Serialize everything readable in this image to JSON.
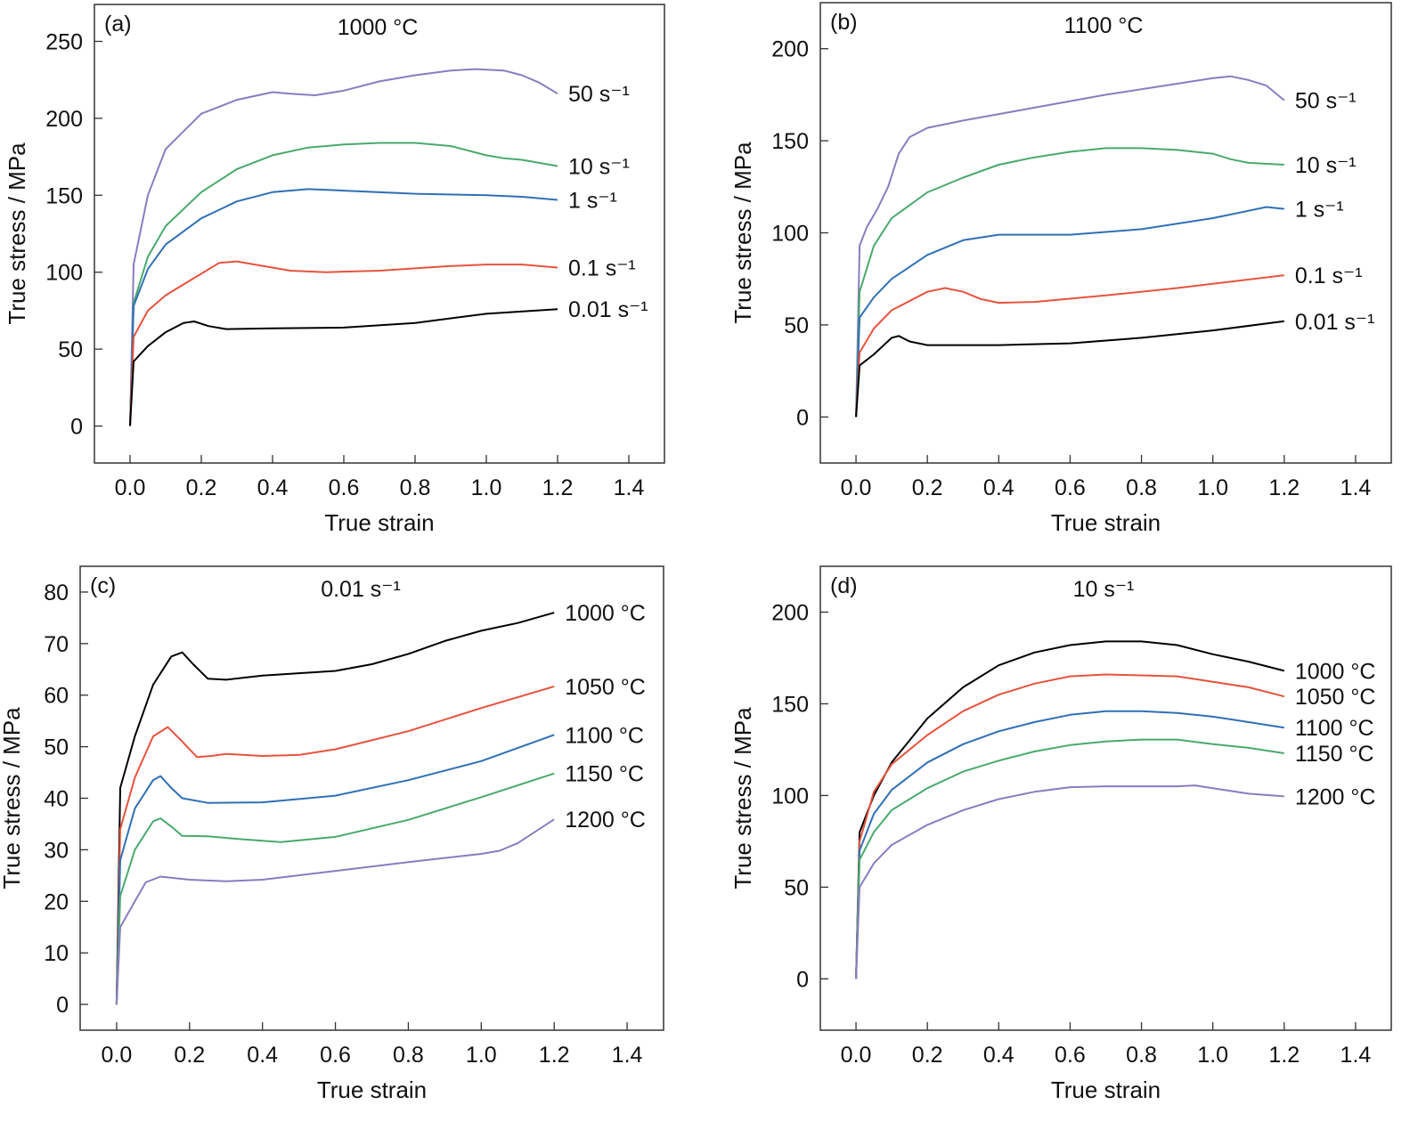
{
  "chart_data": [
    {
      "type": "line",
      "panel_label": "(a)",
      "title": "1000 °C",
      "xlabel": "True strain",
      "ylabel": "True stress / MPa",
      "xlim": [
        -0.1,
        1.5
      ],
      "ylim": [
        -24,
        274
      ],
      "xticks": [
        0.0,
        0.2,
        0.4,
        0.6,
        0.8,
        1.0,
        1.2,
        1.4
      ],
      "xtick_labels": [
        "0.0",
        "0.2",
        "0.4",
        "0.6",
        "0.8",
        "1.0",
        "1.2",
        "1.4"
      ],
      "yticks": [
        0,
        50,
        100,
        150,
        200,
        250
      ],
      "ytick_labels": [
        "0",
        "50",
        "100",
        "150",
        "200",
        "250"
      ],
      "grid": false,
      "series": [
        {
          "name": "50 s⁻¹",
          "color": "#8a7cc0",
          "x": [
            0,
            0.01,
            0.05,
            0.1,
            0.2,
            0.3,
            0.4,
            0.45,
            0.52,
            0.6,
            0.7,
            0.8,
            0.9,
            0.97,
            1.05,
            1.1,
            1.15,
            1.2
          ],
          "y": [
            0,
            105,
            150,
            180,
            203,
            212,
            217,
            216,
            215,
            218,
            224,
            228,
            231,
            232,
            231,
            228,
            223,
            216
          ]
        },
        {
          "name": "10 s⁻¹",
          "color": "#4aa96c",
          "x": [
            0,
            0.01,
            0.05,
            0.1,
            0.2,
            0.3,
            0.4,
            0.5,
            0.6,
            0.7,
            0.8,
            0.9,
            1.0,
            1.05,
            1.1,
            1.2
          ],
          "y": [
            0,
            80,
            110,
            130,
            152,
            167,
            176,
            181,
            183,
            184,
            184,
            182,
            176,
            174,
            173,
            169
          ]
        },
        {
          "name": "1 s⁻¹",
          "color": "#2f6fb5",
          "x": [
            0,
            0.01,
            0.05,
            0.1,
            0.2,
            0.3,
            0.4,
            0.5,
            0.6,
            0.8,
            1.0,
            1.1,
            1.2
          ],
          "y": [
            0,
            78,
            102,
            118,
            135,
            146,
            152,
            154,
            153,
            151,
            150,
            149,
            147
          ]
        },
        {
          "name": "0.1 s⁻¹",
          "color": "#e5533d",
          "x": [
            0,
            0.01,
            0.05,
            0.1,
            0.2,
            0.25,
            0.3,
            0.35,
            0.45,
            0.55,
            0.7,
            0.9,
            1.0,
            1.1,
            1.2
          ],
          "y": [
            0,
            58,
            75,
            85,
            99,
            106,
            107,
            105,
            101,
            100,
            101,
            104,
            105,
            105,
            103
          ]
        },
        {
          "name": "0.01 s⁻¹",
          "color": "#000000",
          "x": [
            0,
            0.01,
            0.05,
            0.1,
            0.15,
            0.18,
            0.22,
            0.27,
            0.4,
            0.6,
            0.8,
            1.0,
            1.2
          ],
          "y": [
            0,
            42,
            52,
            61,
            67,
            68,
            65,
            63,
            63.5,
            64,
            67,
            73,
            76
          ]
        }
      ]
    },
    {
      "type": "line",
      "panel_label": "(b)",
      "title": "1100 °C",
      "xlabel": "True strain",
      "ylabel": "True stress / MPa",
      "xlim": [
        -0.1,
        1.5
      ],
      "ylim": [
        -25,
        225
      ],
      "xticks": [
        0.0,
        0.2,
        0.4,
        0.6,
        0.8,
        1.0,
        1.2,
        1.4
      ],
      "xtick_labels": [
        "0.0",
        "0.2",
        "0.4",
        "0.6",
        "0.8",
        "1.0",
        "1.2",
        "1.4"
      ],
      "yticks": [
        0,
        50,
        100,
        150,
        200
      ],
      "ytick_labels": [
        "0",
        "50",
        "100",
        "150",
        "200"
      ],
      "grid": false,
      "series": [
        {
          "name": "50 s⁻¹",
          "color": "#8a7cc0",
          "x": [
            0,
            0.01,
            0.03,
            0.06,
            0.09,
            0.12,
            0.15,
            0.2,
            0.3,
            0.5,
            0.7,
            0.9,
            1.0,
            1.05,
            1.1,
            1.15,
            1.2
          ],
          "y": [
            0,
            93,
            103,
            113,
            125,
            143,
            152,
            157,
            161,
            168,
            175,
            181,
            184,
            185,
            183,
            180,
            172
          ]
        },
        {
          "name": "10 s⁻¹",
          "color": "#4aa96c",
          "x": [
            0,
            0.01,
            0.05,
            0.1,
            0.2,
            0.3,
            0.4,
            0.5,
            0.6,
            0.7,
            0.8,
            0.9,
            1.0,
            1.05,
            1.1,
            1.2
          ],
          "y": [
            0,
            68,
            93,
            108,
            122,
            130,
            137,
            141,
            144,
            146,
            146,
            145,
            143,
            140,
            138,
            137
          ]
        },
        {
          "name": "1 s⁻¹",
          "color": "#2f6fb5",
          "x": [
            0,
            0.01,
            0.05,
            0.1,
            0.2,
            0.3,
            0.4,
            0.6,
            0.8,
            1.0,
            1.1,
            1.15,
            1.2
          ],
          "y": [
            0,
            54,
            65,
            75,
            88,
            96,
            99,
            99,
            102,
            108,
            112,
            114,
            113
          ]
        },
        {
          "name": "0.1 s⁻¹",
          "color": "#e5533d",
          "x": [
            0,
            0.01,
            0.05,
            0.1,
            0.2,
            0.25,
            0.3,
            0.35,
            0.4,
            0.5,
            0.7,
            0.9,
            1.2
          ],
          "y": [
            0,
            35,
            48,
            58,
            68,
            70,
            68,
            64,
            62,
            62.5,
            66,
            70,
            77
          ]
        },
        {
          "name": "0.01 s⁻¹",
          "color": "#000000",
          "x": [
            0,
            0.01,
            0.05,
            0.1,
            0.12,
            0.15,
            0.2,
            0.4,
            0.6,
            0.8,
            1.0,
            1.2
          ],
          "y": [
            0,
            28,
            34,
            43,
            44,
            41,
            39,
            39,
            40,
            43,
            47,
            52
          ]
        }
      ]
    },
    {
      "type": "line",
      "panel_label": "(c)",
      "title": "0.01 s⁻¹",
      "xlabel": "True strain",
      "ylabel": "True stress / MPa",
      "xlim": [
        -0.1,
        1.5
      ],
      "ylim": [
        -5,
        85
      ],
      "xticks": [
        0.0,
        0.2,
        0.4,
        0.6,
        0.8,
        1.0,
        1.2,
        1.4
      ],
      "xtick_labels": [
        "0.0",
        "0.2",
        "0.4",
        "0.6",
        "0.8",
        "1.0",
        "1.2",
        "1.4"
      ],
      "yticks": [
        0,
        10,
        20,
        30,
        40,
        50,
        60,
        70,
        80
      ],
      "ytick_labels": [
        "0",
        "10",
        "20",
        "30",
        "40",
        "50",
        "60",
        "70",
        "80"
      ],
      "grid": false,
      "series": [
        {
          "name": "1000 °C",
          "color": "#000000",
          "x": [
            0,
            0.01,
            0.05,
            0.1,
            0.15,
            0.18,
            0.21,
            0.25,
            0.3,
            0.4,
            0.6,
            0.7,
            0.8,
            0.9,
            1.0,
            1.1,
            1.2
          ],
          "y": [
            0,
            42,
            52,
            62,
            67.5,
            68.3,
            66,
            63.2,
            63,
            63.8,
            64.7,
            66,
            68,
            70.5,
            72.5,
            74,
            76
          ]
        },
        {
          "name": "1050 °C",
          "color": "#e5533d",
          "x": [
            0,
            0.01,
            0.05,
            0.1,
            0.14,
            0.18,
            0.22,
            0.26,
            0.3,
            0.4,
            0.5,
            0.6,
            0.8,
            1.0,
            1.2
          ],
          "y": [
            0,
            34,
            44,
            52,
            53.8,
            51,
            48,
            48.2,
            48.6,
            48.2,
            48.4,
            49.5,
            53,
            57.5,
            61.7
          ]
        },
        {
          "name": "1100 °C",
          "color": "#2f6fb5",
          "x": [
            0,
            0.01,
            0.05,
            0.1,
            0.12,
            0.15,
            0.18,
            0.25,
            0.4,
            0.6,
            0.8,
            1.0,
            1.2
          ],
          "y": [
            0,
            28,
            38,
            43.5,
            44.3,
            42,
            40,
            39.1,
            39.2,
            40.5,
            43.5,
            47.2,
            52.3
          ]
        },
        {
          "name": "1150 °C",
          "color": "#4aa96c",
          "x": [
            0,
            0.01,
            0.05,
            0.1,
            0.12,
            0.15,
            0.18,
            0.25,
            0.35,
            0.45,
            0.6,
            0.8,
            1.0,
            1.2
          ],
          "y": [
            0,
            21,
            30,
            35.5,
            36.1,
            34.5,
            32.7,
            32.6,
            32,
            31.5,
            32.5,
            35.8,
            40.2,
            44.8
          ]
        },
        {
          "name": "1200 °C",
          "color": "#8a7cc0",
          "x": [
            0,
            0.01,
            0.05,
            0.08,
            0.12,
            0.2,
            0.3,
            0.4,
            0.6,
            0.8,
            1.0,
            1.05,
            1.1,
            1.2
          ],
          "y": [
            0,
            15,
            20,
            23.7,
            24.8,
            24.2,
            23.9,
            24.2,
            25.9,
            27.6,
            29.2,
            29.8,
            31.3,
            35.9
          ]
        }
      ]
    },
    {
      "type": "line",
      "panel_label": "(d)",
      "title": "10 s⁻¹",
      "xlabel": "True strain",
      "ylabel": "True stress / MPa",
      "xlim": [
        -0.1,
        1.5
      ],
      "ylim": [
        -28,
        225
      ],
      "xticks": [
        0.0,
        0.2,
        0.4,
        0.6,
        0.8,
        1.0,
        1.2,
        1.4
      ],
      "xtick_labels": [
        "0.0",
        "0.2",
        "0.4",
        "0.6",
        "0.8",
        "1.0",
        "1.2",
        "1.4"
      ],
      "yticks": [
        0,
        50,
        100,
        150,
        200
      ],
      "ytick_labels": [
        "0",
        "50",
        "100",
        "150",
        "200"
      ],
      "grid": false,
      "series": [
        {
          "name": "1000 °C",
          "color": "#000000",
          "x": [
            0,
            0.01,
            0.05,
            0.1,
            0.2,
            0.3,
            0.4,
            0.5,
            0.6,
            0.7,
            0.8,
            0.9,
            1.0,
            1.1,
            1.2
          ],
          "y": [
            0,
            80,
            100,
            118,
            142,
            159,
            171,
            178,
            182,
            184,
            184,
            182,
            177,
            173,
            168
          ]
        },
        {
          "name": "1050 °C",
          "color": "#e5533d",
          "x": [
            0,
            0.01,
            0.05,
            0.1,
            0.2,
            0.3,
            0.4,
            0.5,
            0.6,
            0.7,
            0.8,
            0.9,
            1.0,
            1.1,
            1.2
          ],
          "y": [
            0,
            75,
            102,
            117,
            133,
            146,
            155,
            161,
            165,
            166,
            165.5,
            165,
            162,
            159,
            154
          ]
        },
        {
          "name": "1100 °C",
          "color": "#2f6fb5",
          "x": [
            0,
            0.01,
            0.05,
            0.1,
            0.2,
            0.3,
            0.4,
            0.5,
            0.6,
            0.7,
            0.8,
            0.9,
            1.0,
            1.1,
            1.2
          ],
          "y": [
            0,
            70,
            90,
            103,
            118,
            128,
            135,
            140,
            144,
            146,
            146,
            145,
            143,
            140,
            137
          ]
        },
        {
          "name": "1150 °C",
          "color": "#4aa96c",
          "x": [
            0,
            0.01,
            0.05,
            0.1,
            0.2,
            0.3,
            0.4,
            0.5,
            0.6,
            0.7,
            0.8,
            0.9,
            1.0,
            1.1,
            1.2
          ],
          "y": [
            0,
            65,
            80,
            92,
            104,
            113,
            119,
            124,
            127.5,
            129.5,
            130.5,
            130.5,
            128,
            126,
            123
          ]
        },
        {
          "name": "1200 °C",
          "color": "#8a7cc0",
          "x": [
            0,
            0.01,
            0.05,
            0.1,
            0.2,
            0.3,
            0.4,
            0.5,
            0.6,
            0.7,
            0.8,
            0.9,
            0.95,
            1.0,
            1.1,
            1.2
          ],
          "y": [
            0,
            50,
            63,
            73,
            84,
            92,
            98,
            102,
            104.5,
            105,
            105,
            105,
            105.5,
            104,
            101,
            99.5
          ]
        }
      ]
    }
  ]
}
